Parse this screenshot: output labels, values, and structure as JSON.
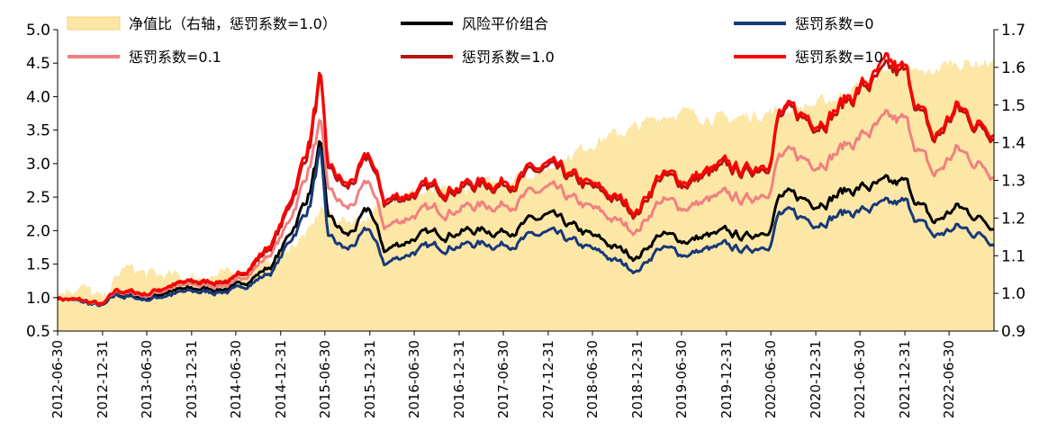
{
  "chart_data": {
    "type": "line",
    "title": "",
    "x_dates": [
      "2012-06-30",
      "2012-12-31",
      "2013-06-30",
      "2013-12-31",
      "2014-06-30",
      "2014-12-31",
      "2015-06-30",
      "2015-12-31",
      "2016-06-30",
      "2016-12-31",
      "2017-06-30",
      "2017-12-31",
      "2018-06-30",
      "2018-12-31",
      "2019-06-30",
      "2019-12-31",
      "2020-06-30",
      "2020-12-31",
      "2021-06-30",
      "2021-12-31",
      "2022-06-30"
    ],
    "x_range": [
      "2012-06-30",
      "2022-12-31"
    ],
    "y_left": {
      "min": 0.5,
      "max": 5.0,
      "ticks": [
        "0.5",
        "1.0",
        "1.5",
        "2.0",
        "2.5",
        "3.0",
        "3.5",
        "4.0",
        "4.5",
        "5.0"
      ]
    },
    "y_right": {
      "min": 0.9,
      "max": 1.7,
      "ticks": [
        "0.9",
        "1.0",
        "1.1",
        "1.2",
        "1.3",
        "1.4",
        "1.5",
        "1.6",
        "1.7"
      ]
    },
    "series": [
      {
        "name": "净值比（右轴，惩罚系数=1.0）",
        "type": "area",
        "axis": "right",
        "color": "#fde7a6",
        "keypoints": [
          [
            "2012-06-30",
            1.0
          ],
          [
            "2012-09-30",
            1.02
          ],
          [
            "2012-12-31",
            0.98
          ],
          [
            "2013-03-31",
            1.07
          ],
          [
            "2013-06-30",
            1.05
          ],
          [
            "2013-12-31",
            1.04
          ],
          [
            "2014-06-30",
            1.05
          ],
          [
            "2014-10-31",
            1.08
          ],
          [
            "2015-01-31",
            1.12
          ],
          [
            "2015-04-30",
            1.16
          ],
          [
            "2015-06-15",
            1.23
          ],
          [
            "2015-08-31",
            1.19
          ],
          [
            "2015-12-31",
            1.2
          ],
          [
            "2016-03-31",
            1.26
          ],
          [
            "2016-12-31",
            1.27
          ],
          [
            "2017-06-30",
            1.3
          ],
          [
            "2017-12-31",
            1.33
          ],
          [
            "2018-06-30",
            1.4
          ],
          [
            "2018-12-31",
            1.44
          ],
          [
            "2019-03-31",
            1.47
          ],
          [
            "2019-06-30",
            1.48
          ],
          [
            "2019-12-31",
            1.46
          ],
          [
            "2020-03-31",
            1.47
          ],
          [
            "2020-06-30",
            1.48
          ],
          [
            "2020-12-31",
            1.5
          ],
          [
            "2021-03-31",
            1.52
          ],
          [
            "2021-06-30",
            1.55
          ],
          [
            "2021-10-31",
            1.6
          ],
          [
            "2021-12-31",
            1.59
          ],
          [
            "2022-03-31",
            1.58
          ],
          [
            "2022-06-30",
            1.61
          ],
          [
            "2022-12-31",
            1.61
          ]
        ]
      },
      {
        "name": "风险平价组合",
        "type": "line",
        "axis": "left",
        "color": "#000000",
        "keypoints": [
          [
            "2012-06-30",
            1.0
          ],
          [
            "2012-11-30",
            0.9
          ],
          [
            "2012-12-31",
            0.87
          ],
          [
            "2013-02-28",
            1.05
          ],
          [
            "2013-06-30",
            1.0
          ],
          [
            "2013-09-30",
            1.1
          ],
          [
            "2013-12-31",
            1.12
          ],
          [
            "2014-06-30",
            1.15
          ],
          [
            "2014-11-30",
            1.5
          ],
          [
            "2015-01-31",
            1.9
          ],
          [
            "2015-04-30",
            2.6
          ],
          [
            "2015-06-10",
            3.3
          ],
          [
            "2015-07-10",
            2.2
          ],
          [
            "2015-09-30",
            1.9
          ],
          [
            "2015-12-31",
            2.3
          ],
          [
            "2016-02-29",
            1.7
          ],
          [
            "2016-06-30",
            1.9
          ],
          [
            "2016-12-31",
            2.0
          ],
          [
            "2017-06-30",
            2.0
          ],
          [
            "2017-12-31",
            2.2
          ],
          [
            "2018-06-30",
            1.9
          ],
          [
            "2018-10-31",
            1.7
          ],
          [
            "2018-12-31",
            1.6
          ],
          [
            "2019-03-31",
            1.95
          ],
          [
            "2019-06-30",
            1.85
          ],
          [
            "2019-12-31",
            1.95
          ],
          [
            "2020-03-31",
            1.9
          ],
          [
            "2020-06-30",
            2.1
          ],
          [
            "2020-07-31",
            2.5
          ],
          [
            "2020-12-31",
            2.45
          ],
          [
            "2021-03-31",
            2.55
          ],
          [
            "2021-06-30",
            2.65
          ],
          [
            "2021-10-31",
            2.65
          ],
          [
            "2021-12-31",
            2.7
          ],
          [
            "2022-04-30",
            2.1
          ],
          [
            "2022-07-31",
            2.35
          ],
          [
            "2022-10-31",
            2.2
          ],
          [
            "2022-12-31",
            2.1
          ]
        ]
      },
      {
        "name": "惩罚系数=0",
        "type": "line",
        "axis": "left",
        "color": "#17397a",
        "keypoints": [
          [
            "2012-06-30",
            1.0
          ],
          [
            "2012-11-30",
            0.89
          ],
          [
            "2012-12-31",
            0.86
          ],
          [
            "2013-02-28",
            1.03
          ],
          [
            "2013-06-30",
            0.97
          ],
          [
            "2013-09-30",
            1.05
          ],
          [
            "2013-12-31",
            1.08
          ],
          [
            "2014-06-30",
            1.1
          ],
          [
            "2014-11-30",
            1.4
          ],
          [
            "2015-01-31",
            1.8
          ],
          [
            "2015-04-30",
            2.4
          ],
          [
            "2015-06-10",
            3.2
          ],
          [
            "2015-07-10",
            1.9
          ],
          [
            "2015-09-30",
            1.7
          ],
          [
            "2015-12-31",
            2.0
          ],
          [
            "2016-02-29",
            1.5
          ],
          [
            "2016-06-30",
            1.7
          ],
          [
            "2016-12-31",
            1.8
          ],
          [
            "2017-06-30",
            1.8
          ],
          [
            "2017-12-31",
            1.95
          ],
          [
            "2018-06-30",
            1.7
          ],
          [
            "2018-10-31",
            1.5
          ],
          [
            "2018-12-31",
            1.4
          ],
          [
            "2019-03-31",
            1.75
          ],
          [
            "2019-06-30",
            1.65
          ],
          [
            "2019-12-31",
            1.75
          ],
          [
            "2020-03-31",
            1.7
          ],
          [
            "2020-06-30",
            1.85
          ],
          [
            "2020-07-31",
            2.25
          ],
          [
            "2020-12-31",
            2.15
          ],
          [
            "2021-03-31",
            2.25
          ],
          [
            "2021-06-30",
            2.3
          ],
          [
            "2021-10-31",
            2.35
          ],
          [
            "2021-12-31",
            2.4
          ],
          [
            "2022-04-30",
            1.9
          ],
          [
            "2022-07-31",
            2.05
          ],
          [
            "2022-10-31",
            1.95
          ],
          [
            "2022-12-31",
            1.85
          ]
        ]
      },
      {
        "name": "惩罚系数=0.1",
        "type": "line",
        "axis": "left",
        "color": "#f08080",
        "keypoints": [
          [
            "2012-06-30",
            1.0
          ],
          [
            "2012-11-30",
            0.91
          ],
          [
            "2012-12-31",
            0.88
          ],
          [
            "2013-02-28",
            1.08
          ],
          [
            "2013-06-30",
            1.03
          ],
          [
            "2013-09-30",
            1.15
          ],
          [
            "2013-12-31",
            1.18
          ],
          [
            "2014-06-30",
            1.2
          ],
          [
            "2014-11-30",
            1.7
          ],
          [
            "2015-01-31",
            2.1
          ],
          [
            "2015-04-30",
            3.0
          ],
          [
            "2015-06-10",
            3.6
          ],
          [
            "2015-07-10",
            2.6
          ],
          [
            "2015-09-30",
            2.3
          ],
          [
            "2015-12-31",
            2.7
          ],
          [
            "2016-02-29",
            2.05
          ],
          [
            "2016-06-30",
            2.25
          ],
          [
            "2016-12-31",
            2.35
          ],
          [
            "2017-06-30",
            2.4
          ],
          [
            "2017-12-31",
            2.6
          ],
          [
            "2018-06-30",
            2.3
          ],
          [
            "2018-10-31",
            2.1
          ],
          [
            "2018-12-31",
            2.0
          ],
          [
            "2019-03-31",
            2.45
          ],
          [
            "2019-06-30",
            2.35
          ],
          [
            "2019-12-31",
            2.5
          ],
          [
            "2020-03-31",
            2.45
          ],
          [
            "2020-06-30",
            2.7
          ],
          [
            "2020-07-31",
            3.1
          ],
          [
            "2020-12-31",
            3.05
          ],
          [
            "2021-03-31",
            3.2
          ],
          [
            "2021-06-30",
            3.4
          ],
          [
            "2021-10-31",
            3.6
          ],
          [
            "2021-12-31",
            3.6
          ],
          [
            "2022-04-30",
            2.8
          ],
          [
            "2022-07-31",
            3.2
          ],
          [
            "2022-10-31",
            3.0
          ],
          [
            "2022-12-31",
            2.9
          ]
        ]
      },
      {
        "name": "惩罚系数=1.0",
        "type": "line",
        "axis": "left",
        "color": "#b81414",
        "keypoints": [
          [
            "2012-06-30",
            1.0
          ],
          [
            "2012-11-30",
            0.92
          ],
          [
            "2012-12-31",
            0.88
          ],
          [
            "2013-02-28",
            1.1
          ],
          [
            "2013-06-30",
            1.05
          ],
          [
            "2013-09-30",
            1.18
          ],
          [
            "2013-12-31",
            1.22
          ],
          [
            "2014-06-30",
            1.25
          ],
          [
            "2014-11-30",
            1.8
          ],
          [
            "2015-01-31",
            2.3
          ],
          [
            "2015-04-30",
            3.3
          ],
          [
            "2015-06-10",
            4.25
          ],
          [
            "2015-07-10",
            2.9
          ],
          [
            "2015-09-30",
            2.6
          ],
          [
            "2015-12-31",
            3.05
          ],
          [
            "2016-02-29",
            2.4
          ],
          [
            "2016-06-30",
            2.55
          ],
          [
            "2016-12-31",
            2.65
          ],
          [
            "2017-06-30",
            2.7
          ],
          [
            "2017-12-31",
            2.9
          ],
          [
            "2018-06-30",
            2.6
          ],
          [
            "2018-10-31",
            2.4
          ],
          [
            "2018-12-31",
            2.25
          ],
          [
            "2019-03-31",
            2.8
          ],
          [
            "2019-06-30",
            2.7
          ],
          [
            "2019-12-31",
            2.9
          ],
          [
            "2020-03-31",
            2.85
          ],
          [
            "2020-06-30",
            3.1
          ],
          [
            "2020-07-31",
            3.7
          ],
          [
            "2020-12-31",
            3.65
          ],
          [
            "2021-03-31",
            3.8
          ],
          [
            "2021-06-30",
            4.1
          ],
          [
            "2021-10-31",
            4.3
          ],
          [
            "2021-12-31",
            4.3
          ],
          [
            "2022-04-30",
            3.3
          ],
          [
            "2022-07-31",
            3.8
          ],
          [
            "2022-10-31",
            3.55
          ],
          [
            "2022-12-31",
            3.5
          ]
        ]
      },
      {
        "name": "惩罚系数=10",
        "type": "line",
        "axis": "left",
        "color": "#ff0000",
        "keypoints": [
          [
            "2012-06-30",
            1.0
          ],
          [
            "2012-11-30",
            0.92
          ],
          [
            "2012-12-31",
            0.88
          ],
          [
            "2013-02-28",
            1.11
          ],
          [
            "2013-06-30",
            1.06
          ],
          [
            "2013-09-30",
            1.19
          ],
          [
            "2013-12-31",
            1.23
          ],
          [
            "2014-06-30",
            1.27
          ],
          [
            "2014-11-30",
            1.85
          ],
          [
            "2015-01-31",
            2.35
          ],
          [
            "2015-04-30",
            3.4
          ],
          [
            "2015-06-10",
            4.3
          ],
          [
            "2015-07-10",
            2.95
          ],
          [
            "2015-09-30",
            2.65
          ],
          [
            "2015-12-31",
            3.1
          ],
          [
            "2016-02-29",
            2.45
          ],
          [
            "2016-06-30",
            2.6
          ],
          [
            "2016-12-31",
            2.7
          ],
          [
            "2017-06-30",
            2.75
          ],
          [
            "2017-12-31",
            2.95
          ],
          [
            "2018-06-30",
            2.65
          ],
          [
            "2018-10-31",
            2.45
          ],
          [
            "2018-12-31",
            2.3
          ],
          [
            "2019-03-31",
            2.85
          ],
          [
            "2019-06-30",
            2.75
          ],
          [
            "2019-12-31",
            2.95
          ],
          [
            "2020-03-31",
            2.9
          ],
          [
            "2020-06-30",
            3.15
          ],
          [
            "2020-07-31",
            3.75
          ],
          [
            "2020-12-31",
            3.7
          ],
          [
            "2021-03-31",
            3.85
          ],
          [
            "2021-06-30",
            4.15
          ],
          [
            "2021-10-31",
            4.4
          ],
          [
            "2021-12-31",
            4.35
          ],
          [
            "2022-04-30",
            3.35
          ],
          [
            "2022-07-31",
            3.85
          ],
          [
            "2022-10-31",
            3.6
          ],
          [
            "2022-12-31",
            3.55
          ]
        ]
      }
    ],
    "legend": {
      "placement": "top",
      "entries": [
        {
          "label": "净值比（右轴，惩罚系数=1.0）",
          "color": "#fde7a6",
          "kind": "area"
        },
        {
          "label": "风险平价组合",
          "color": "#000000",
          "kind": "line"
        },
        {
          "label": "惩罚系数=0",
          "color": "#17397a",
          "kind": "line"
        },
        {
          "label": "惩罚系数=0.1",
          "color": "#f08080",
          "kind": "line"
        },
        {
          "label": "惩罚系数=1.0",
          "color": "#b81414",
          "kind": "line"
        },
        {
          "label": "惩罚系数=10",
          "color": "#ff0000",
          "kind": "line"
        }
      ]
    }
  }
}
